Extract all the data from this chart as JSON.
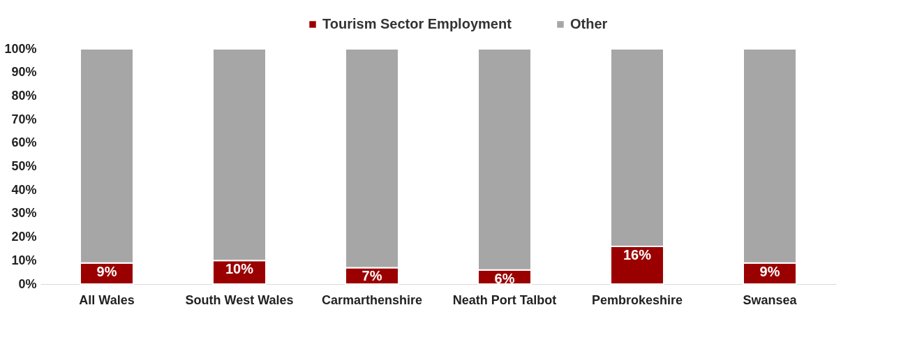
{
  "chart_data": {
    "type": "bar",
    "stacked": true,
    "legend": "top",
    "categories": [
      "All Wales",
      "South West Wales",
      "Carmarthenshire",
      "Neath Port Talbot",
      "Pembrokeshire",
      "Swansea"
    ],
    "series": [
      {
        "name": "Tourism Sector Employment",
        "color": "#9b0000",
        "values": [
          9,
          10,
          7,
          6,
          16,
          9
        ],
        "value_labels": [
          "9%",
          "10%",
          "7%",
          "6%",
          "16%",
          "9%"
        ]
      },
      {
        "name": "Other",
        "color": "#a6a6a6",
        "values": [
          91,
          90,
          93,
          94,
          84,
          91
        ]
      }
    ],
    "ylim": [
      0,
      100
    ],
    "yticks": [
      {
        "value": 0,
        "label": "0%"
      },
      {
        "value": 10,
        "label": "10%"
      },
      {
        "value": 20,
        "label": "20%"
      },
      {
        "value": 30,
        "label": "30%"
      },
      {
        "value": 40,
        "label": "40%"
      },
      {
        "value": 50,
        "label": "50%"
      },
      {
        "value": 60,
        "label": "60%"
      },
      {
        "value": 70,
        "label": "70%"
      },
      {
        "value": 80,
        "label": "80%"
      },
      {
        "value": 90,
        "label": "90%"
      },
      {
        "value": 100,
        "label": "100%"
      }
    ],
    "grid": false
  }
}
